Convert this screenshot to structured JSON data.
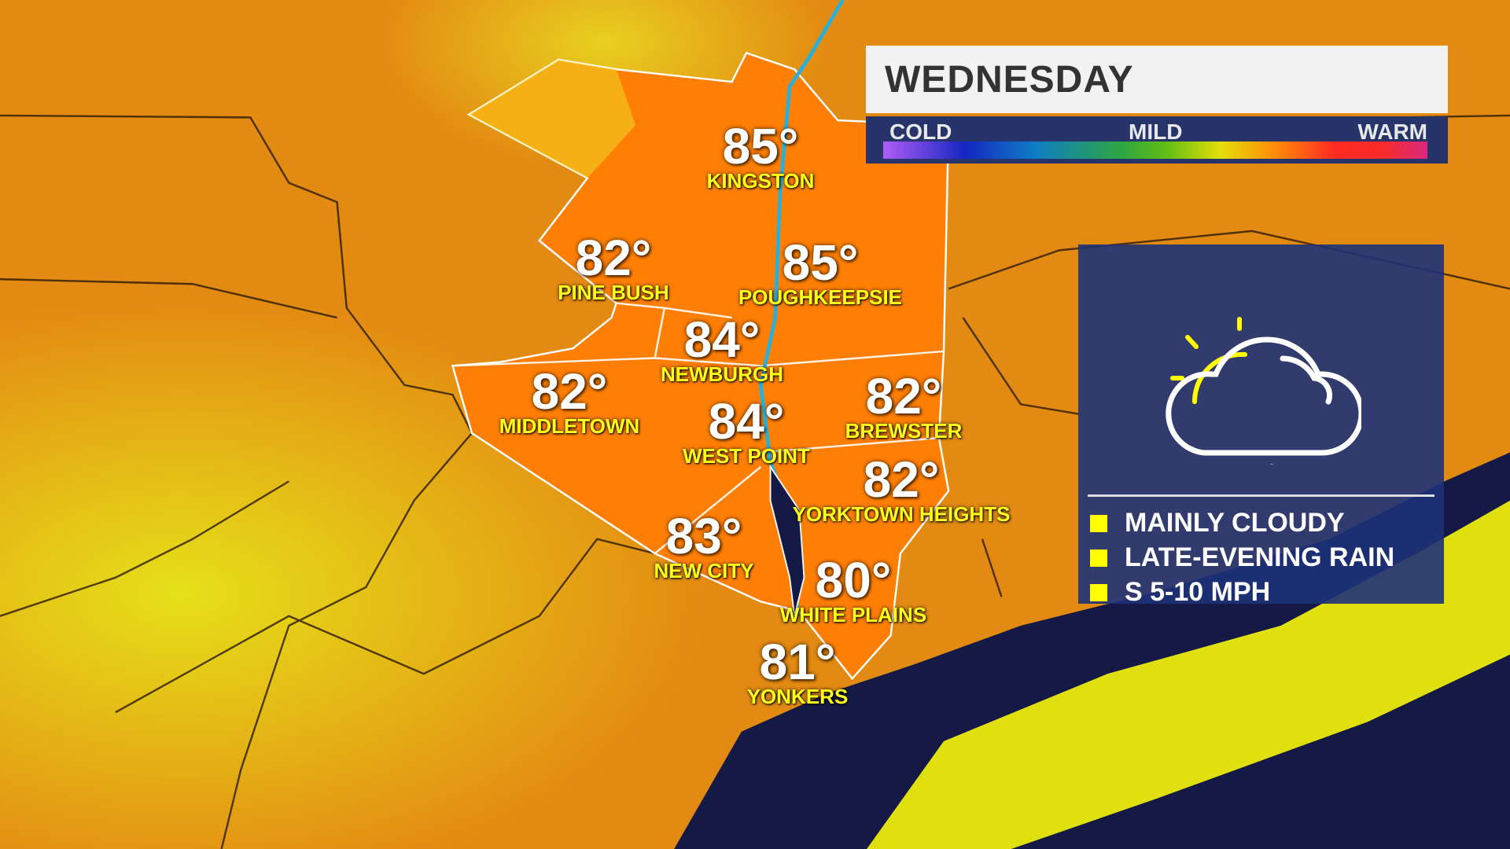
{
  "header": {
    "title": "WEDNESDAY"
  },
  "scale": {
    "cold": "COLD",
    "mild": "MILD",
    "warm": "WARM"
  },
  "cities": [
    {
      "temp": "85°",
      "name": "KINGSTON"
    },
    {
      "temp": "82°",
      "name": "PINE BUSH"
    },
    {
      "temp": "85°",
      "name": "POUGHKEEPSIE"
    },
    {
      "temp": "84°",
      "name": "NEWBURGH"
    },
    {
      "temp": "82°",
      "name": "MIDDLETOWN"
    },
    {
      "temp": "84°",
      "name": "WEST POINT"
    },
    {
      "temp": "82°",
      "name": "BREWSTER"
    },
    {
      "temp": "82°",
      "name": "YORKTOWN HEIGHTS"
    },
    {
      "temp": "83°",
      "name": "NEW CITY"
    },
    {
      "temp": "80°",
      "name": "WHITE PLAINS"
    },
    {
      "temp": "81°",
      "name": "YONKERS"
    }
  ],
  "forecast": {
    "icon": "partly-cloudy-icon",
    "conditions": [
      "MAINLY CLOUDY",
      "LATE-EVENING RAIN",
      "S 5-10 MPH"
    ]
  },
  "colors": {
    "water": "#141a45",
    "panel": "#1e3278",
    "accent": "#ffff00",
    "region": "#ff7f00"
  }
}
